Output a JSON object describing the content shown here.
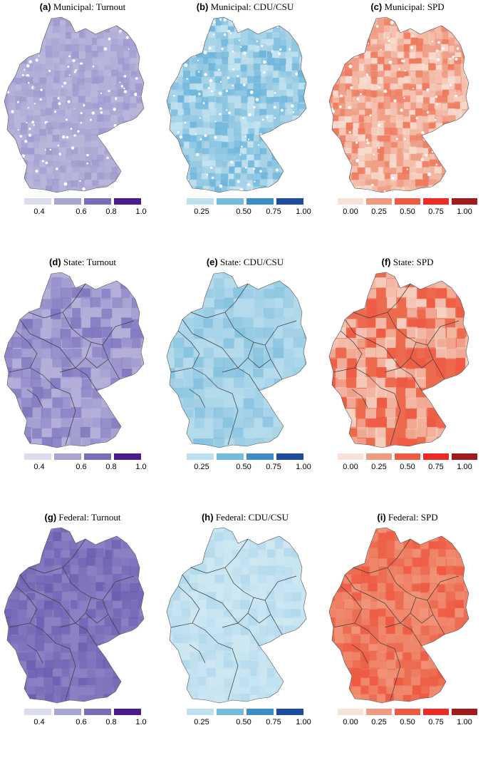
{
  "panels": [
    {
      "tag": "(a)",
      "title": "Municipal: Turnout",
      "scheme": "purple",
      "level": "municipal",
      "legend": {
        "colors": [
          "#dcdcef",
          "#a9a5d3",
          "#7b6cb8",
          "#4b1a8f"
        ],
        "labels": [
          "0.4",
          "0.6",
          "0.8",
          "1.0"
        ]
      }
    },
    {
      "tag": "(b)",
      "title": "Municipal: CDU/CSU",
      "scheme": "blue",
      "level": "municipal",
      "legend": {
        "colors": [
          "#bfe0ee",
          "#73bcdc",
          "#3c8cc6",
          "#1d4c9c"
        ],
        "labels": [
          "0.25",
          "0.50",
          "0.75",
          "1.00"
        ]
      }
    },
    {
      "tag": "(c)",
      "title": "Municipal: SPD",
      "scheme": "red",
      "level": "municipal",
      "legend": {
        "colors": [
          "#f7e2d8",
          "#f09a80",
          "#ef5a43",
          "#ee2a25",
          "#a11b1b"
        ],
        "labels": [
          "0.00",
          "0.25",
          "0.50",
          "0.75",
          "1.00"
        ]
      }
    },
    {
      "tag": "(d)",
      "title": "State: Turnout",
      "scheme": "purple",
      "level": "state",
      "legend": {
        "colors": [
          "#dcdcef",
          "#a9a5d3",
          "#7b6cb8",
          "#4b1a8f"
        ],
        "labels": [
          "0.4",
          "0.6",
          "0.8",
          "1.0"
        ]
      }
    },
    {
      "tag": "(e)",
      "title": "State: CDU/CSU",
      "scheme": "blue",
      "level": "state",
      "legend": {
        "colors": [
          "#bfe0ee",
          "#73bcdc",
          "#3c8cc6",
          "#1d4c9c"
        ],
        "labels": [
          "0.25",
          "0.50",
          "0.75",
          "1.00"
        ]
      }
    },
    {
      "tag": "(f)",
      "title": "State: SPD",
      "scheme": "red",
      "level": "state",
      "legend": {
        "colors": [
          "#f7e2d8",
          "#f09a80",
          "#ef5a43",
          "#ee2a25",
          "#a11b1b"
        ],
        "labels": [
          "0.00",
          "0.25",
          "0.50",
          "0.75",
          "1.00"
        ]
      }
    },
    {
      "tag": "(g)",
      "title": "Federal: Turnout",
      "scheme": "purple",
      "level": "federal",
      "legend": {
        "colors": [
          "#dcdcef",
          "#a9a5d3",
          "#7b6cb8",
          "#4b1a8f"
        ],
        "labels": [
          "0.4",
          "0.6",
          "0.8",
          "1.0"
        ]
      }
    },
    {
      "tag": "(h)",
      "title": "Federal: CDU/CSU",
      "scheme": "blue",
      "level": "federal",
      "legend": {
        "colors": [
          "#bfe0ee",
          "#73bcdc",
          "#3c8cc6",
          "#1d4c9c"
        ],
        "labels": [
          "0.25",
          "0.50",
          "0.75",
          "1.00"
        ]
      }
    },
    {
      "tag": "(i)",
      "title": "Federal: SPD",
      "scheme": "red",
      "level": "federal",
      "legend": {
        "colors": [
          "#f7e2d8",
          "#f09a80",
          "#ef5a43",
          "#ee2a25",
          "#a11b1b"
        ],
        "labels": [
          "0.00",
          "0.25",
          "0.50",
          "0.75",
          "1.00"
        ]
      }
    }
  ],
  "region_colors": {
    "purple": {
      "municipal": [
        "#b9b6dc",
        "#a9a5d3",
        "#b1aed8",
        "#9f9acf"
      ],
      "state": [
        "#b3afd9",
        "#a29dd0",
        "#8e86c6",
        "#8178bf"
      ],
      "federal": [
        "#8a80c3",
        "#7f74bd",
        "#7568b7",
        "#6c5fb2"
      ]
    },
    "blue": {
      "municipal": [
        "#a7d3e8",
        "#8dc6e2",
        "#c4e3f0",
        "#6fb6da"
      ],
      "state": [
        "#b4dbec",
        "#9ccde5",
        "#a8d4e9",
        "#86c2df"
      ],
      "federal": [
        "#cde7f2",
        "#bddff0",
        "#c6e4f1",
        "#b2d9ec"
      ]
    },
    "red": {
      "municipal": [
        "#f0a088",
        "#f5c2b0",
        "#ee7a5e",
        "#f8dccf"
      ],
      "state": [
        "#ec6a4e",
        "#f3c2ae",
        "#ef5a43",
        "#f6d3c4"
      ],
      "federal": [
        "#ec6e52",
        "#f08a6e",
        "#ef5a43",
        "#f19478"
      ]
    }
  }
}
